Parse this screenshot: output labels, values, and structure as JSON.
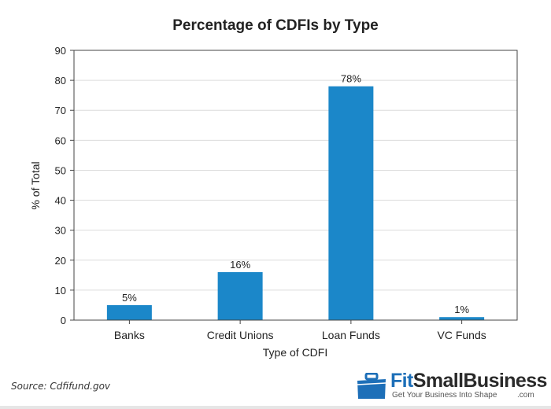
{
  "chart_data": {
    "type": "bar",
    "title": "Percentage of CDFIs by Type",
    "xlabel": "Type of CDFI",
    "ylabel": "% of Total",
    "categories": [
      "Banks",
      "Credit Unions",
      "Loan Funds",
      "VC Funds"
    ],
    "values": [
      5,
      16,
      78,
      1
    ],
    "data_labels": [
      "5%",
      "16%",
      "78%",
      "1%"
    ],
    "ylim": [
      0,
      90
    ],
    "yticks": [
      0,
      10,
      20,
      30,
      40,
      50,
      60,
      70,
      80,
      90
    ],
    "grid": true,
    "bar_color": "#1b87c9"
  },
  "footer": {
    "source": "Source: Cdfifund.gov",
    "brand": {
      "name_fit": "Fit",
      "name_rest": "SmallBusiness",
      "com": ".com",
      "tagline": "Get Your Business Into Shape",
      "icon": "briefcase-icon",
      "brand_color": "#1d6fb8"
    }
  }
}
